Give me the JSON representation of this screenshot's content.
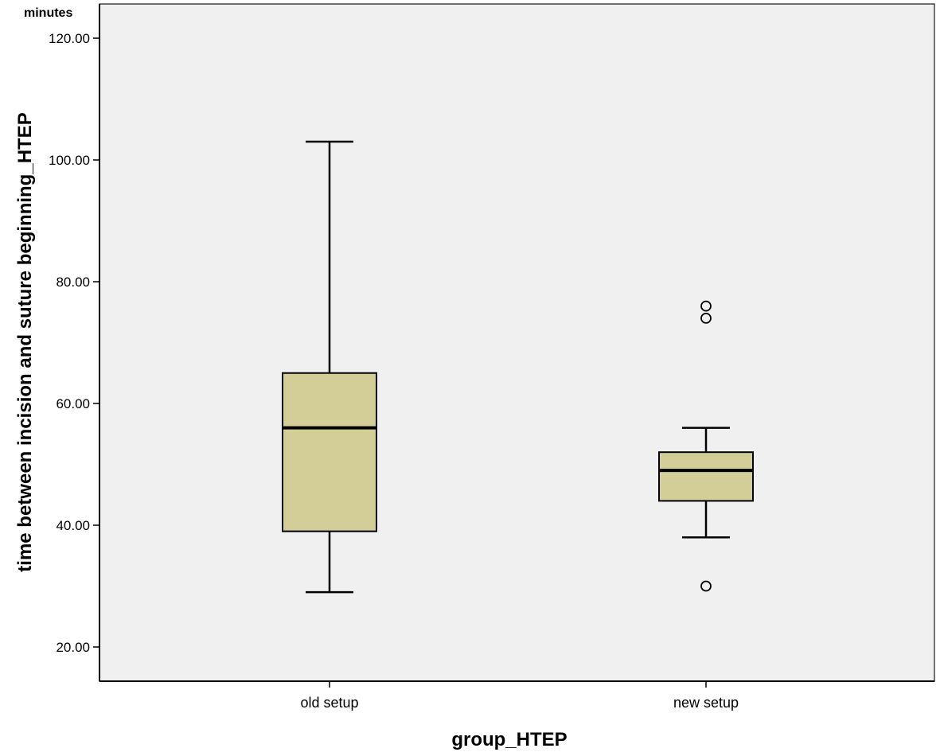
{
  "chart_data": {
    "type": "box",
    "title": "",
    "unit_label": "minutes",
    "xlabel": "group_HTEP",
    "ylabel": "time between incision and suture beginning_HTEP",
    "ylim": [
      14.4,
      125.9
    ],
    "yticks": [
      20,
      40,
      60,
      80,
      100,
      120
    ],
    "ytick_labels": [
      "20.00",
      "40.00",
      "60.00",
      "80.00",
      "100.00",
      "120.00"
    ],
    "grid": false,
    "legend": null,
    "categories": [
      "old setup",
      "new setup"
    ],
    "series": [
      {
        "name": "old setup",
        "whisker_low": 29,
        "q1": 39,
        "median": 56,
        "q3": 65,
        "whisker_high": 103,
        "outliers": []
      },
      {
        "name": "new setup",
        "whisker_low": 38,
        "q1": 44,
        "median": 49,
        "q3": 52,
        "whisker_high": 56,
        "outliers": [
          30,
          74,
          76
        ]
      }
    ],
    "colors": {
      "box_fill": "#D3CE98",
      "plot_background": "#F0F0F0",
      "line": "#000000"
    }
  }
}
